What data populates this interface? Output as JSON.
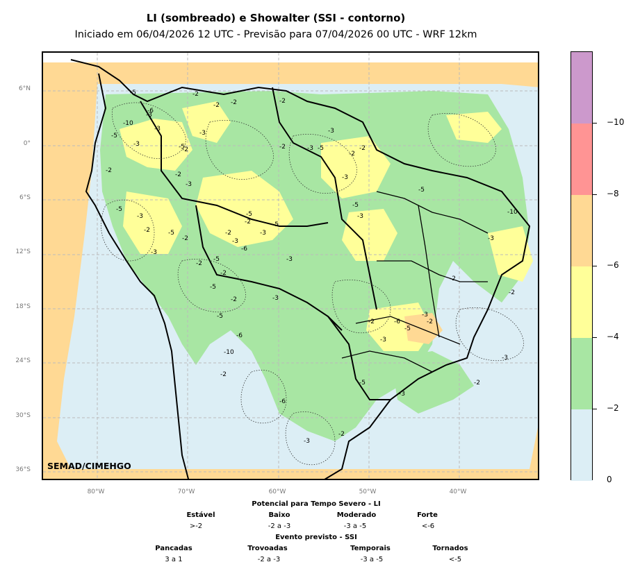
{
  "title": "LI (sombreado) e Showalter (SSI - contorno)",
  "subtitle": "Iniciado em 06/04/2026 12 UTC - Previsão para 07/04/2026 00 UTC - WRF 12km",
  "credit": "SEMAD/CIMEHGO",
  "latitude_labels": [
    "6°N",
    "0°",
    "6°S",
    "12°S",
    "18°S",
    "24°S",
    "30°S",
    "36°S"
  ],
  "longitude_labels": [
    "80°W",
    "70°W",
    "60°W",
    "50°W",
    "40°W"
  ],
  "colors": {
    "land_outline": "#000000",
    "grid": "#bbbbbb",
    "li_0_to_-2": "#dceef5",
    "li_-2_to_-4": "#a8e6a3",
    "li_-4_to_-6": "#ffff99",
    "li_-6_to_-8": "#ffd994",
    "li_-8_to_-10": "#ff9494",
    "li_below_-10": "#cc99cc",
    "domain_outside": "#ffd994"
  },
  "colorbar": {
    "tick_labels": [
      "0",
      "−2",
      "−4",
      "−6",
      "−8",
      "−10"
    ]
  },
  "legend": {
    "li_title": "Potencial para Tempo Severo - LI",
    "li_categories": [
      {
        "name": "Estável",
        "range": ">-2"
      },
      {
        "name": "Baixo",
        "range": "-2 a -3"
      },
      {
        "name": "Moderado",
        "range": "-3 a -5"
      },
      {
        "name": "Forte",
        "range": "<-6"
      }
    ],
    "ssi_title": "Evento previsto - SSI",
    "ssi_categories": [
      {
        "name": "Pancadas",
        "range": "3 a 1"
      },
      {
        "name": "Trovoadas",
        "range": "-2 a -3"
      },
      {
        "name": "Temporais",
        "range": "-3 a -5"
      },
      {
        "name": "Tornados",
        "range": "<-5"
      }
    ]
  },
  "contour_labels": [
    "-5",
    "-2",
    "-3",
    "-10",
    "-6",
    "-2",
    "-3",
    "-5",
    "-2",
    "-3",
    "-2",
    "-2",
    "-3",
    "-5",
    "-2",
    "-3",
    "-5",
    "-3",
    "-2",
    "-5",
    "-2",
    "-3",
    "-2",
    "-5",
    "-3",
    "-2",
    "-2",
    "-5",
    "-3",
    "-6",
    "-5",
    "-3",
    "-2",
    "-5",
    "-2",
    "-3",
    "-10",
    "-6",
    "-5",
    "-2",
    "-3",
    "-3",
    "-2",
    "-5",
    "-2",
    "-3",
    "-2",
    "-5",
    "-3",
    "-6",
    "-5",
    "-2",
    "-3",
    "-3",
    "-2",
    "-2",
    "-3",
    "-10",
    "-2",
    "-5",
    "-5",
    "-2",
    "-3",
    "-6",
    "-2",
    "-3",
    "-2",
    "-3"
  ]
}
